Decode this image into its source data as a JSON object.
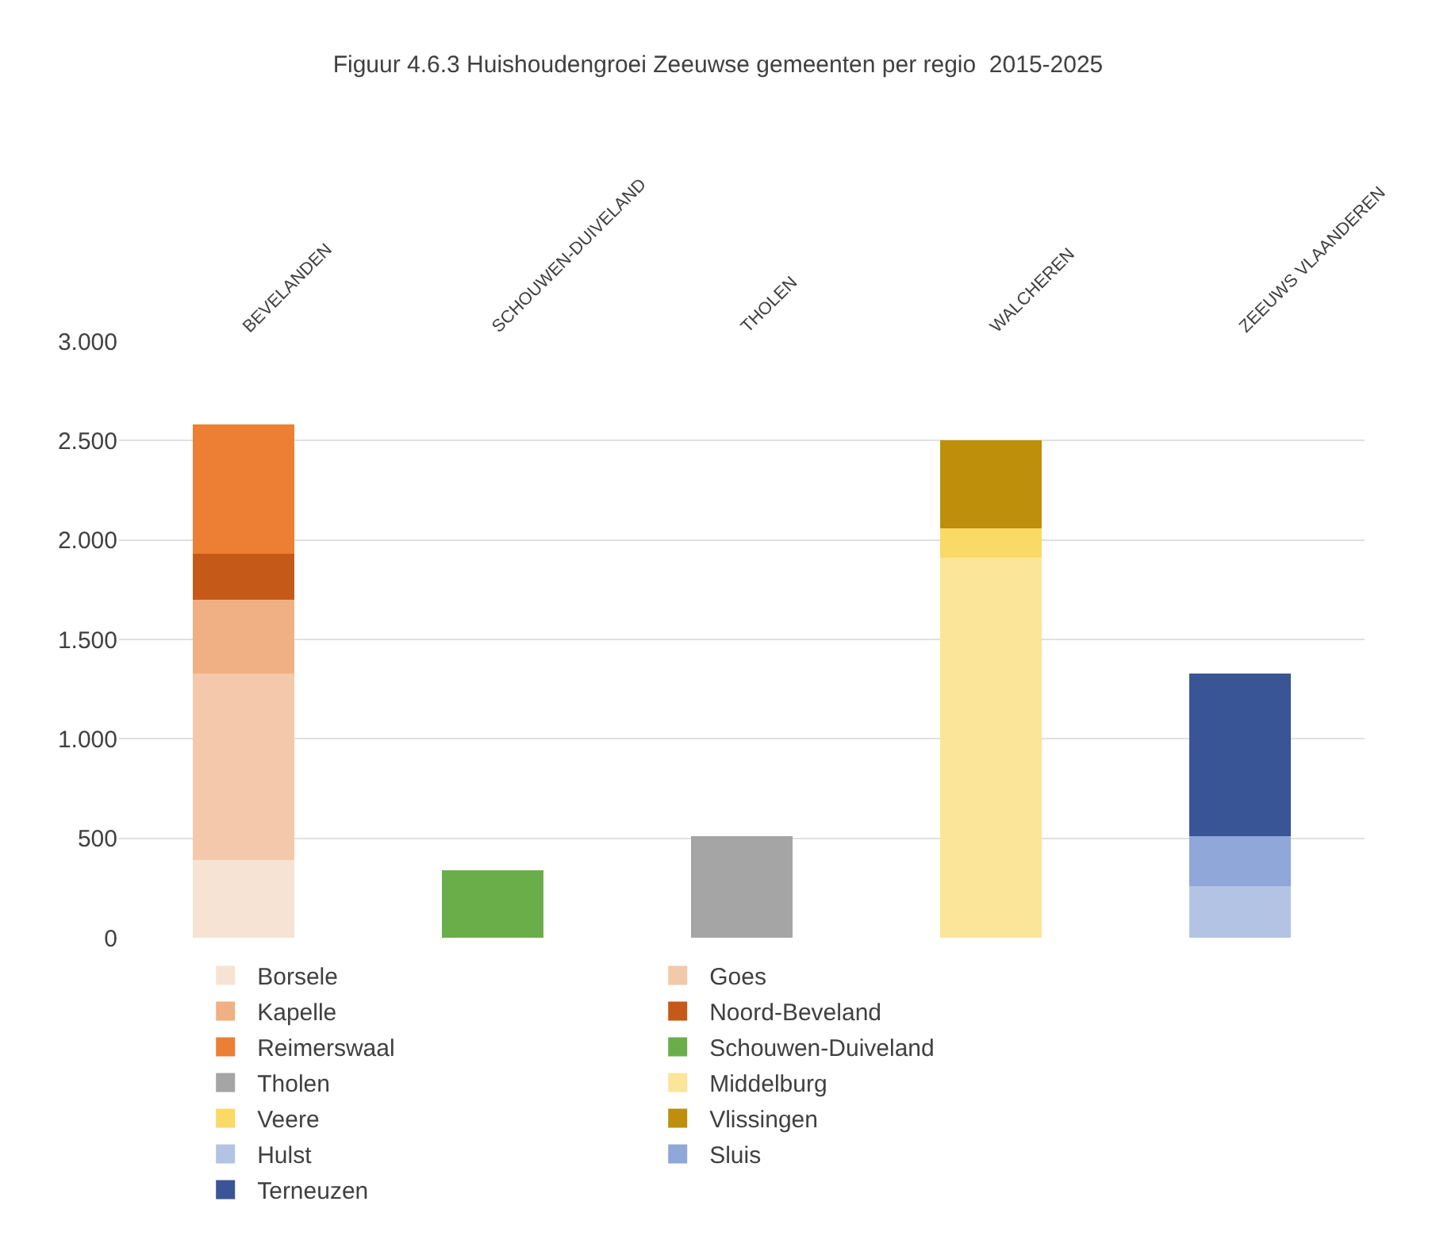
{
  "chart_data": {
    "type": "bar",
    "title": "Figuur 4.6.3 Huishoudengroei Zeeuwse gemeenten per regio  2015-2025",
    "stacked": true,
    "categories": [
      "BEVELANDEN",
      "SCHOUWEN-DUIVELAND",
      "THOLEN",
      "WALCHEREN",
      "ZEEUWS VLAANDEREN"
    ],
    "series": [
      {
        "name": "Borsele",
        "color": "#f6e3d4",
        "values": [
          390,
          null,
          null,
          null,
          null
        ]
      },
      {
        "name": "Goes",
        "color": "#f4c8aa",
        "values": [
          940,
          null,
          null,
          null,
          null
        ]
      },
      {
        "name": "Kapelle",
        "color": "#f0b083",
        "values": [
          370,
          null,
          null,
          null,
          null
        ]
      },
      {
        "name": "Noord-Beveland",
        "color": "#c55a18",
        "values": [
          230,
          null,
          null,
          null,
          null
        ]
      },
      {
        "name": "Reimerswaal",
        "color": "#ec7f34",
        "values": [
          650,
          null,
          null,
          null,
          null
        ]
      },
      {
        "name": "Schouwen-Duiveland",
        "color": "#6aae4a",
        "values": [
          null,
          340,
          null,
          null,
          null
        ]
      },
      {
        "name": "Tholen",
        "color": "#a5a5a5",
        "values": [
          null,
          null,
          510,
          null,
          null
        ]
      },
      {
        "name": "Middelburg",
        "color": "#fbe599",
        "values": [
          null,
          null,
          null,
          1910,
          null
        ]
      },
      {
        "name": "Veere",
        "color": "#fbd966",
        "values": [
          null,
          null,
          null,
          150,
          null
        ]
      },
      {
        "name": "Vlissingen",
        "color": "#bd8f0a",
        "values": [
          null,
          null,
          null,
          440,
          null
        ]
      },
      {
        "name": "Hulst",
        "color": "#b3c3e3",
        "values": [
          null,
          null,
          null,
          null,
          260
        ]
      },
      {
        "name": "Sluis",
        "color": "#8fa7d9",
        "values": [
          null,
          null,
          null,
          null,
          250
        ]
      },
      {
        "name": "Terneuzen",
        "color": "#3a5595",
        "values": [
          null,
          null,
          null,
          null,
          820
        ]
      }
    ],
    "ylim": [
      0,
      3000
    ],
    "yticks": [
      0,
      500,
      {
        "value": 1000,
        "label": "1.000"
      },
      {
        "value": 1500,
        "label": "1.500"
      },
      {
        "value": 2000,
        "label": "2.000"
      },
      {
        "value": 2500,
        "label": "2.500"
      },
      {
        "value": 3000,
        "label": "3.000"
      }
    ],
    "grid": "y",
    "legend": "bottom"
  }
}
